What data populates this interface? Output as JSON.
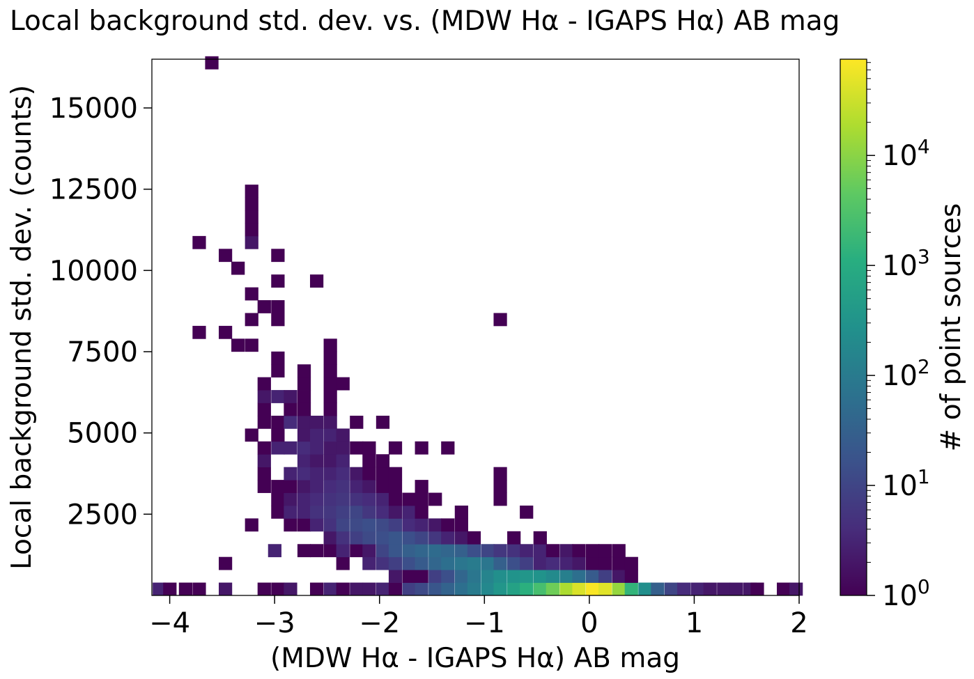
{
  "chart_data": {
    "type": "heatmap",
    "title": "Local background std. dev. vs. (MDW Hα - IGAPS Hα) AB mag",
    "xlabel": "(MDW Hα - IGAPS Hα) AB mag",
    "ylabel": "Local background std. dev. (counts)",
    "colorbar_label": "# of point sources",
    "colormap": "viridis",
    "color_scale": "log",
    "colorbar_range": [
      1,
      75000
    ],
    "xlim": [
      -4.17,
      2.0
    ],
    "ylim": [
      0,
      16500
    ],
    "bin_width_x": 0.125,
    "bin_width_y": 395,
    "x_ticks": [
      -4,
      -3,
      -2,
      -1,
      0,
      1,
      2
    ],
    "x_tick_labels": [
      "−4",
      "−3",
      "−2",
      "−1",
      "0",
      "1",
      "2"
    ],
    "y_ticks": [
      2500,
      5000,
      7500,
      10000,
      12500,
      15000
    ],
    "y_tick_labels": [
      "2500",
      "5000",
      "7500",
      "10000",
      "12500",
      "15000"
    ],
    "colorbar_ticks": [
      {
        "base": "10",
        "exp": "0",
        "value": 1
      },
      {
        "base": "10",
        "exp": "1",
        "value": 10
      },
      {
        "base": "10",
        "exp": "2",
        "value": 100
      },
      {
        "base": "10",
        "exp": "3",
        "value": 1000
      },
      {
        "base": "10",
        "exp": "4",
        "value": 10000
      }
    ],
    "bins": [
      [
        -4.1,
        0,
        3
      ],
      [
        -4.0,
        0,
        1
      ],
      [
        -3.85,
        0,
        1
      ],
      [
        -3.72,
        0,
        1
      ],
      [
        -3.47,
        0,
        2
      ],
      [
        -3.1,
        0,
        1
      ],
      [
        -2.97,
        0,
        1
      ],
      [
        -2.85,
        0,
        2
      ],
      [
        -2.6,
        0,
        1
      ],
      [
        -2.47,
        0,
        3
      ],
      [
        -2.35,
        0,
        1
      ],
      [
        -2.22,
        0,
        2
      ],
      [
        -2.1,
        0,
        2
      ],
      [
        -1.97,
        0,
        3
      ],
      [
        -1.85,
        0,
        1
      ],
      [
        -1.72,
        0,
        8
      ],
      [
        -1.6,
        0,
        12
      ],
      [
        -1.47,
        0,
        20
      ],
      [
        -1.35,
        0,
        35
      ],
      [
        -1.22,
        0,
        60
      ],
      [
        -1.1,
        0,
        100
      ],
      [
        -0.97,
        0,
        180
      ],
      [
        -0.85,
        0,
        350
      ],
      [
        -0.72,
        0,
        600
      ],
      [
        -0.6,
        0,
        1200
      ],
      [
        -0.47,
        0,
        2500
      ],
      [
        -0.35,
        0,
        6000
      ],
      [
        -0.22,
        0,
        18000
      ],
      [
        -0.1,
        0,
        40000
      ],
      [
        0.03,
        0,
        70000
      ],
      [
        0.15,
        0,
        45000
      ],
      [
        0.28,
        0,
        12000
      ],
      [
        0.4,
        0,
        1500
      ],
      [
        0.53,
        0,
        250
      ],
      [
        0.65,
        0,
        30
      ],
      [
        0.78,
        0,
        10
      ],
      [
        0.9,
        0,
        4
      ],
      [
        1.03,
        0,
        3
      ],
      [
        1.15,
        0,
        2
      ],
      [
        1.28,
        0,
        2
      ],
      [
        1.4,
        0,
        2
      ],
      [
        1.53,
        0,
        2
      ],
      [
        1.6,
        0,
        1
      ],
      [
        1.85,
        0,
        1
      ],
      [
        1.97,
        0,
        2
      ],
      [
        -1.85,
        1,
        2
      ],
      [
        -1.72,
        1,
        1
      ],
      [
        -1.6,
        1,
        1
      ],
      [
        -1.47,
        1,
        8
      ],
      [
        -1.35,
        1,
        15
      ],
      [
        -1.22,
        1,
        40
      ],
      [
        -1.1,
        1,
        80
      ],
      [
        -0.97,
        1,
        150
      ],
      [
        -0.85,
        1,
        250
      ],
      [
        -0.72,
        1,
        300
      ],
      [
        -0.6,
        1,
        350
      ],
      [
        -0.47,
        1,
        300
      ],
      [
        -0.35,
        1,
        200
      ],
      [
        -0.22,
        1,
        120
      ],
      [
        -0.1,
        1,
        60
      ],
      [
        0.03,
        1,
        25
      ],
      [
        0.15,
        1,
        8
      ],
      [
        0.28,
        1,
        2
      ],
      [
        0.4,
        1,
        1
      ],
      [
        -3.47,
        2,
        1
      ],
      [
        -2.35,
        2,
        1
      ],
      [
        -2.1,
        2,
        3
      ],
      [
        -1.97,
        2,
        5
      ],
      [
        -1.85,
        2,
        8
      ],
      [
        -1.72,
        2,
        15
      ],
      [
        -1.6,
        2,
        25
      ],
      [
        -1.47,
        2,
        40
      ],
      [
        -1.35,
        2,
        60
      ],
      [
        -1.22,
        2,
        80
      ],
      [
        -1.1,
        2,
        100
      ],
      [
        -0.97,
        2,
        80
      ],
      [
        -0.85,
        2,
        30
      ],
      [
        -0.72,
        2,
        15
      ],
      [
        -0.6,
        2,
        8
      ],
      [
        -0.47,
        2,
        3
      ],
      [
        -0.35,
        2,
        4
      ],
      [
        -0.22,
        2,
        3
      ],
      [
        -0.1,
        2,
        2
      ],
      [
        0.03,
        2,
        1
      ],
      [
        0.15,
        2,
        1
      ],
      [
        0.28,
        2,
        1
      ],
      [
        0.4,
        2,
        1
      ],
      [
        -2.6,
        3,
        1
      ],
      [
        -2.47,
        3,
        1
      ],
      [
        -2.35,
        3,
        3
      ],
      [
        -2.22,
        3,
        1
      ],
      [
        -2.1,
        3,
        2
      ],
      [
        -1.97,
        3,
        10
      ],
      [
        -1.85,
        3,
        20
      ],
      [
        -1.72,
        3,
        30
      ],
      [
        -1.6,
        3,
        40
      ],
      [
        -1.47,
        3,
        50
      ],
      [
        -1.35,
        3,
        40
      ],
      [
        -1.22,
        3,
        30
      ],
      [
        -1.1,
        3,
        15
      ],
      [
        -0.97,
        3,
        10
      ],
      [
        -0.85,
        3,
        6
      ],
      [
        -0.72,
        3,
        5
      ],
      [
        -0.6,
        3,
        3
      ],
      [
        -0.47,
        3,
        3
      ],
      [
        -0.35,
        3,
        1
      ],
      [
        -0.22,
        3,
        2
      ],
      [
        -0.1,
        3,
        1
      ],
      [
        0.03,
        3,
        1
      ],
      [
        0.15,
        3,
        1
      ],
      [
        0.28,
        3,
        1
      ],
      [
        -3.0,
        3,
        3
      ],
      [
        -2.72,
        3,
        1
      ],
      [
        -2.47,
        4,
        2
      ],
      [
        -2.35,
        4,
        5
      ],
      [
        -2.22,
        4,
        8
      ],
      [
        -2.1,
        4,
        12
      ],
      [
        -1.97,
        4,
        15
      ],
      [
        -1.85,
        4,
        20
      ],
      [
        -1.72,
        4,
        15
      ],
      [
        -1.6,
        4,
        10
      ],
      [
        -1.47,
        4,
        6
      ],
      [
        -1.35,
        4,
        3
      ],
      [
        -1.22,
        4,
        2
      ],
      [
        -1.1,
        4,
        1
      ],
      [
        -0.72,
        4,
        1
      ],
      [
        -0.47,
        4,
        1
      ],
      [
        -3.22,
        5,
        1
      ],
      [
        -2.85,
        5,
        1
      ],
      [
        -2.72,
        5,
        1
      ],
      [
        -2.6,
        5,
        3
      ],
      [
        -2.47,
        5,
        5
      ],
      [
        -2.35,
        5,
        10
      ],
      [
        -2.22,
        5,
        12
      ],
      [
        -2.1,
        5,
        15
      ],
      [
        -1.97,
        5,
        12
      ],
      [
        -1.85,
        5,
        8
      ],
      [
        -1.72,
        5,
        4
      ],
      [
        -1.6,
        5,
        3
      ],
      [
        -1.47,
        5,
        2
      ],
      [
        -1.35,
        5,
        1
      ],
      [
        -1.22,
        5,
        1
      ],
      [
        -2.97,
        6,
        1
      ],
      [
        -2.85,
        6,
        3
      ],
      [
        -2.72,
        6,
        3
      ],
      [
        -2.6,
        6,
        5
      ],
      [
        -2.47,
        6,
        6
      ],
      [
        -2.35,
        6,
        8
      ],
      [
        -2.22,
        6,
        10
      ],
      [
        -2.1,
        6,
        6
      ],
      [
        -1.97,
        6,
        4
      ],
      [
        -1.85,
        6,
        2
      ],
      [
        -1.72,
        6,
        3
      ],
      [
        -1.6,
        6,
        1
      ],
      [
        -1.22,
        6,
        1
      ],
      [
        -0.6,
        6,
        1
      ],
      [
        -2.97,
        7,
        1
      ],
      [
        -2.85,
        7,
        2
      ],
      [
        -2.72,
        7,
        3
      ],
      [
        -2.6,
        7,
        4
      ],
      [
        -2.47,
        7,
        5
      ],
      [
        -2.35,
        7,
        6
      ],
      [
        -2.22,
        7,
        5
      ],
      [
        -2.1,
        7,
        4
      ],
      [
        -1.97,
        7,
        3
      ],
      [
        -1.85,
        7,
        1
      ],
      [
        -1.72,
        7,
        1
      ],
      [
        -1.6,
        7,
        1
      ],
      [
        -1.47,
        7,
        1
      ],
      [
        -0.85,
        7,
        1
      ],
      [
        -3.1,
        8,
        1
      ],
      [
        -2.97,
        8,
        1
      ],
      [
        -2.85,
        8,
        1
      ],
      [
        -2.72,
        8,
        2
      ],
      [
        -2.6,
        8,
        3
      ],
      [
        -2.47,
        8,
        4
      ],
      [
        -2.35,
        8,
        5
      ],
      [
        -2.22,
        8,
        3
      ],
      [
        -2.1,
        8,
        2
      ],
      [
        -1.97,
        8,
        1
      ],
      [
        -1.85,
        8,
        1
      ],
      [
        -1.6,
        8,
        1
      ],
      [
        -0.85,
        8,
        1
      ],
      [
        -3.1,
        9,
        1
      ],
      [
        -2.85,
        9,
        3
      ],
      [
        -2.72,
        9,
        4
      ],
      [
        -2.6,
        9,
        3
      ],
      [
        -2.47,
        9,
        3
      ],
      [
        -2.35,
        9,
        4
      ],
      [
        -2.22,
        9,
        2
      ],
      [
        -2.1,
        9,
        1
      ],
      [
        -1.97,
        9,
        1
      ],
      [
        -1.85,
        9,
        1
      ],
      [
        -0.85,
        9,
        1
      ],
      [
        -3.1,
        10,
        2
      ],
      [
        -2.72,
        10,
        3
      ],
      [
        -2.6,
        10,
        2
      ],
      [
        -2.47,
        10,
        2
      ],
      [
        -2.35,
        10,
        3
      ],
      [
        -2.1,
        10,
        1
      ],
      [
        -1.97,
        10,
        1
      ],
      [
        -3.1,
        11,
        1
      ],
      [
        -2.97,
        11,
        3
      ],
      [
        -2.85,
        11,
        3
      ],
      [
        -2.72,
        11,
        4
      ],
      [
        -2.6,
        11,
        3
      ],
      [
        -2.47,
        11,
        2
      ],
      [
        -2.35,
        11,
        2
      ],
      [
        -2.22,
        11,
        1
      ],
      [
        -2.1,
        11,
        1
      ],
      [
        -1.85,
        11,
        1
      ],
      [
        -1.6,
        11,
        1
      ],
      [
        -1.35,
        11,
        1
      ],
      [
        -3.22,
        12,
        1
      ],
      [
        -2.97,
        12,
        1
      ],
      [
        -2.72,
        12,
        2
      ],
      [
        -2.6,
        12,
        3
      ],
      [
        -2.47,
        12,
        3
      ],
      [
        -2.35,
        12,
        2
      ],
      [
        -3.1,
        13,
        1
      ],
      [
        -2.97,
        13,
        1
      ],
      [
        -2.85,
        13,
        4
      ],
      [
        -2.72,
        13,
        2
      ],
      [
        -2.6,
        13,
        2
      ],
      [
        -2.47,
        13,
        2
      ],
      [
        -2.22,
        13,
        1
      ],
      [
        -1.97,
        13,
        1
      ],
      [
        -3.1,
        14,
        1
      ],
      [
        -2.85,
        14,
        1
      ],
      [
        -2.72,
        14,
        1
      ],
      [
        -2.47,
        14,
        1
      ],
      [
        -3.1,
        15,
        2
      ],
      [
        -2.97,
        15,
        3
      ],
      [
        -2.85,
        15,
        2
      ],
      [
        -2.72,
        15,
        1
      ],
      [
        -2.47,
        15,
        1
      ],
      [
        -3.1,
        16,
        1
      ],
      [
        -2.72,
        16,
        1
      ],
      [
        -2.47,
        16,
        1
      ],
      [
        -2.35,
        16,
        1
      ],
      [
        -2.97,
        17,
        1
      ],
      [
        -2.72,
        17,
        1
      ],
      [
        -2.47,
        17,
        1
      ],
      [
        -2.97,
        18,
        1
      ],
      [
        -2.47,
        18,
        1
      ],
      [
        -3.22,
        19,
        1
      ],
      [
        -3.35,
        19,
        1
      ],
      [
        -2.47,
        19,
        1
      ],
      [
        -3.72,
        20,
        1
      ],
      [
        -3.47,
        20,
        1
      ],
      [
        -3.22,
        21,
        1
      ],
      [
        -2.97,
        21,
        1
      ],
      [
        -0.85,
        21,
        1
      ],
      [
        -3.1,
        22,
        1
      ],
      [
        -2.97,
        22,
        1
      ],
      [
        -3.22,
        23,
        1
      ],
      [
        -2.97,
        24,
        1
      ],
      [
        -2.6,
        24,
        1
      ],
      [
        -3.35,
        25,
        1
      ],
      [
        -3.47,
        26,
        1
      ],
      [
        -2.97,
        26,
        1
      ],
      [
        -3.72,
        27,
        1
      ],
      [
        -3.22,
        27,
        2
      ],
      [
        -3.22,
        28,
        1
      ],
      [
        -3.22,
        29,
        1
      ],
      [
        -3.22,
        30,
        1
      ],
      [
        -3.22,
        31,
        1
      ],
      [
        -3.6,
        41,
        1
      ]
    ]
  }
}
